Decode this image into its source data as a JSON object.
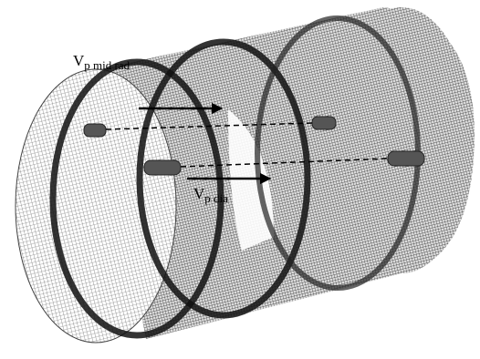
{
  "labels": [
    {
      "main": "V",
      "sub": "p mid rad"
    },
    {
      "main": "V",
      "sub": "p dia"
    }
  ]
}
